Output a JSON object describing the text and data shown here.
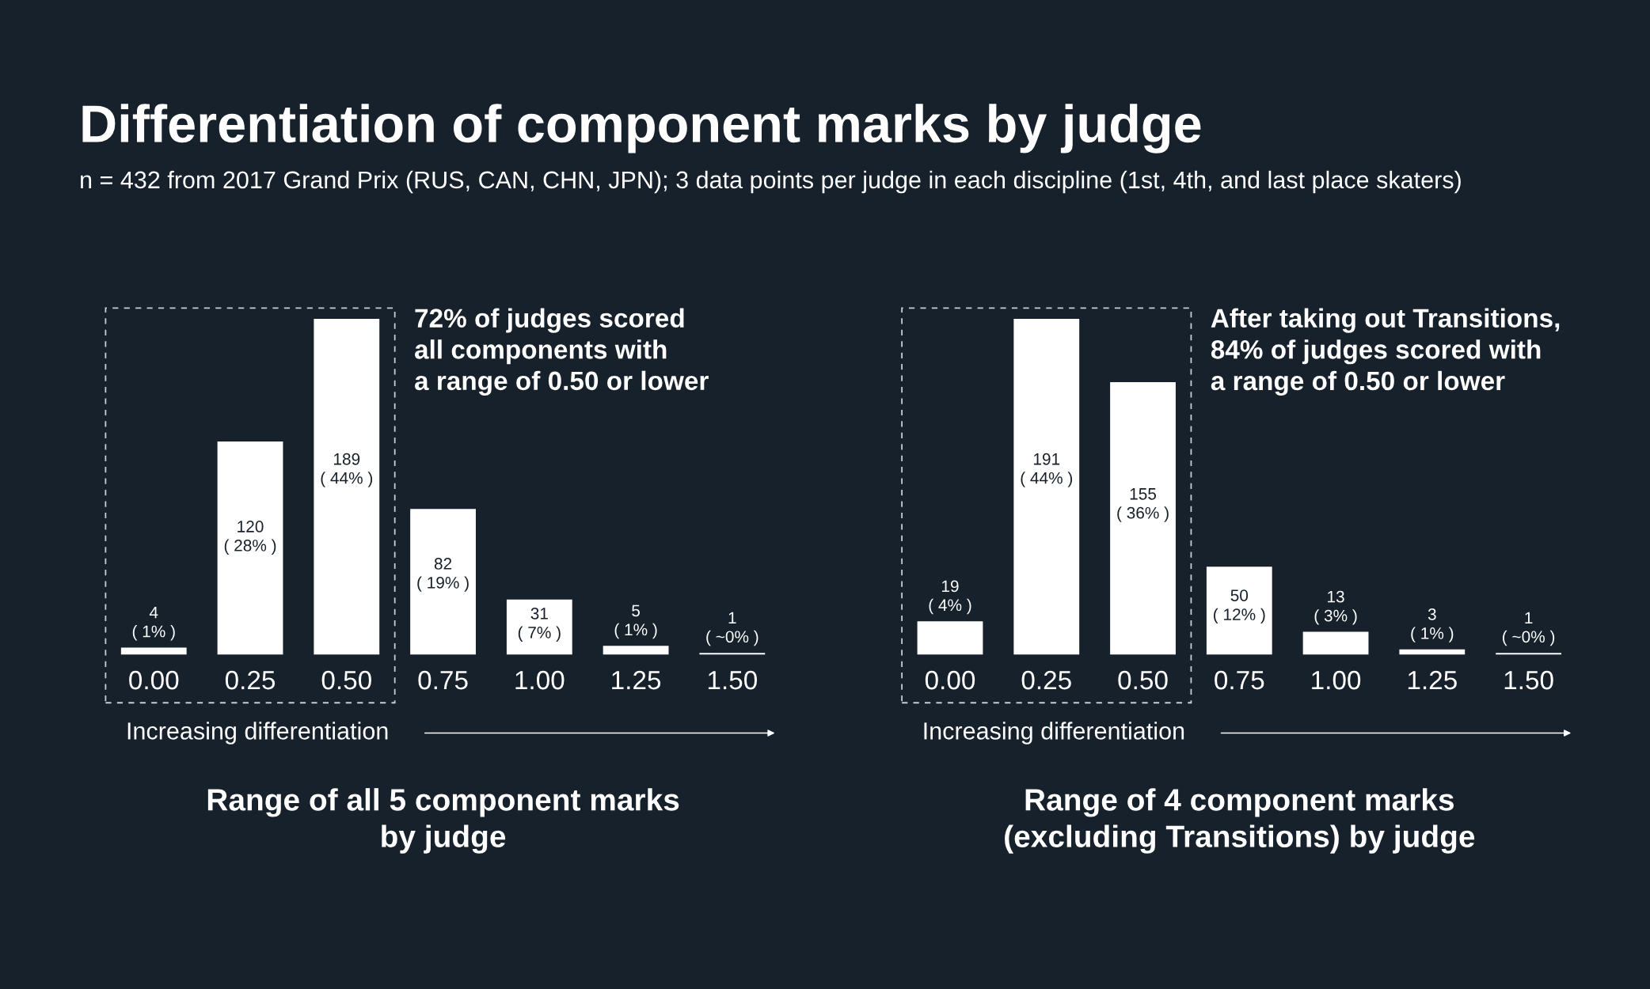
{
  "chart_data": [
    {
      "type": "bar",
      "title": "Differentiation of component marks by judge",
      "subtitle": "n = 432 from 2017 Grand Prix (RUS, CAN, CHN, JPN); 3 data points per judge in each discipline (1st, 4th, and last place skaters)",
      "xlabel": "Increasing differentiation",
      "categories": [
        "0.00",
        "0.25",
        "0.50",
        "0.75",
        "1.00",
        "1.25",
        "1.50"
      ],
      "series": [
        {
          "color": "#ffffff",
          "values": [
            4,
            120,
            189,
            82,
            31,
            5,
            1
          ],
          "value_labels": [
            "4\n( 1% )",
            "120\n( 28% )",
            "189\n( 44% )",
            "82\n( 19% )",
            "31\n( 7% )",
            "5\n( 1% )",
            "1\n( ~0% )"
          ]
        }
      ],
      "tick_labels": "x",
      "annotations": [
        "72% of judges scored\nall components with\na range of 0.50 or lower",
        "Range of all 5 component marks\nby judge"
      ]
    },
    {
      "type": "bar",
      "xlabel": "Increasing differentiation",
      "categories": [
        "0.00",
        "0.25",
        "0.50",
        "0.75",
        "1.00",
        "1.25",
        "1.50"
      ],
      "series": [
        {
          "color": "#ffffff",
          "values": [
            19,
            191,
            155,
            50,
            13,
            3,
            1
          ],
          "value_labels": [
            "19\n( 4% )",
            "191\n( 44% )",
            "155\n( 36% )",
            "50\n( 12% )",
            "13\n( 3% )",
            "3\n( 1% )",
            "1\n( ~0% )"
          ]
        }
      ],
      "tick_labels": "x",
      "annotations": [
        "After taking out Transitions,\n84% of judges scored with\na range of 0.50 or lower",
        "Range of 4 component marks\n(excluding Transitions) by judge"
      ]
    }
  ]
}
